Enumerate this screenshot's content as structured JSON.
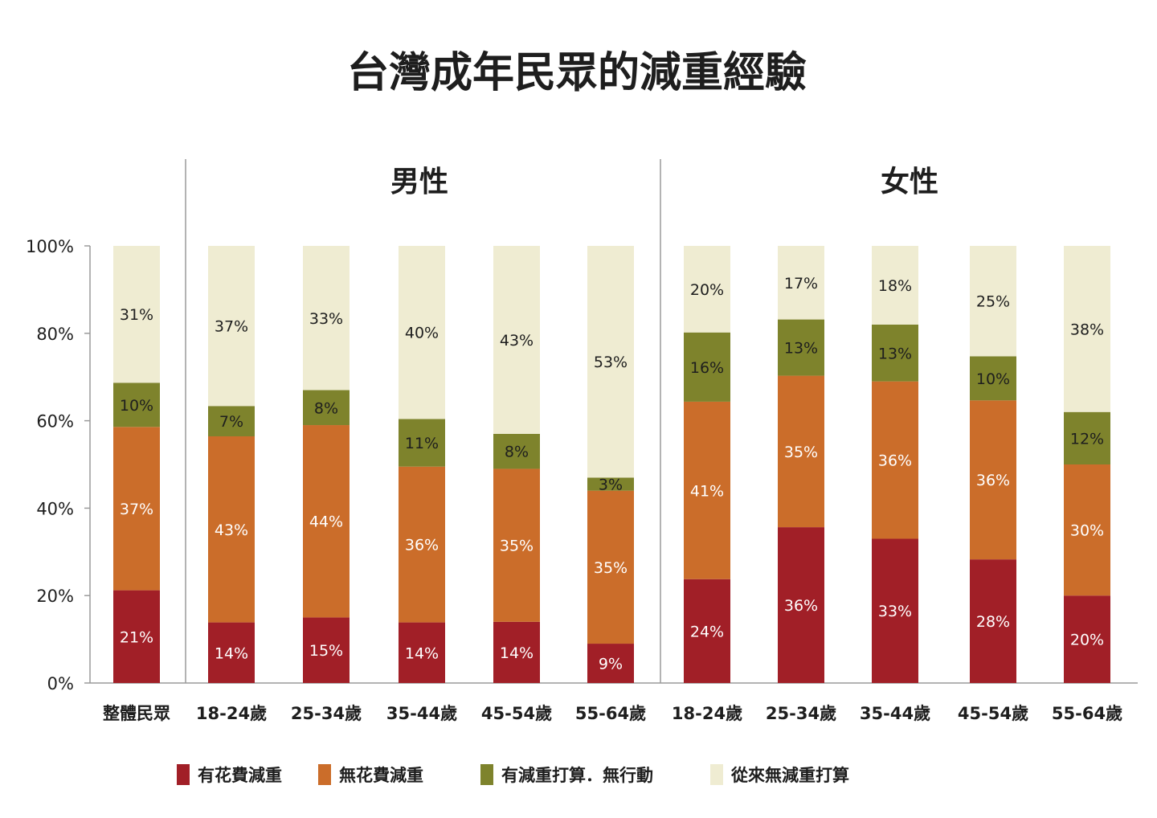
{
  "chart_data": {
    "type": "bar",
    "stacked": true,
    "title": "台灣成年民眾的減重經驗",
    "groups": [
      {
        "label": "",
        "categories": [
          "整體民眾"
        ]
      },
      {
        "label": "男性",
        "categories": [
          "18-24歲",
          "25-34歲",
          "35-44歲",
          "45-54歲",
          "55-64歲"
        ]
      },
      {
        "label": "女性",
        "categories": [
          "18-24歲",
          "25-34歲",
          "35-44歲",
          "45-54歲",
          "55-64歲"
        ]
      }
    ],
    "categories": [
      "整體民眾",
      "18-24歲",
      "25-34歲",
      "35-44歲",
      "45-54歲",
      "55-64歲",
      "18-24歲",
      "25-34歲",
      "35-44歲",
      "45-54歲",
      "55-64歲"
    ],
    "series": [
      {
        "name": "有花費減重",
        "color": "#a11f27",
        "label_color": "#ffffff",
        "values": [
          21,
          14,
          15,
          14,
          14,
          9,
          24,
          36,
          33,
          28,
          20
        ]
      },
      {
        "name": "無花費減重",
        "color": "#cb6d2a",
        "label_color": "#ffffff",
        "values": [
          37,
          43,
          44,
          36,
          35,
          35,
          41,
          35,
          36,
          36,
          30
        ]
      },
      {
        "name": "有減重打算，無行動",
        "legend_label": "有減重打算．無行動",
        "color": "#7e832c",
        "label_color": "#1e1e1e",
        "values": [
          10,
          7,
          8,
          11,
          8,
          3,
          16,
          13,
          13,
          10,
          12
        ]
      },
      {
        "name": "從來無減重打算",
        "color": "#efecd2",
        "label_color": "#1e1e1e",
        "values": [
          31,
          37,
          33,
          40,
          43,
          53,
          20,
          17,
          18,
          25,
          38
        ]
      }
    ],
    "yticks": [
      "0%",
      "20%",
      "40%",
      "60%",
      "80%",
      "100%"
    ],
    "ylim": [
      0,
      100
    ],
    "legend_position": "bottom"
  }
}
